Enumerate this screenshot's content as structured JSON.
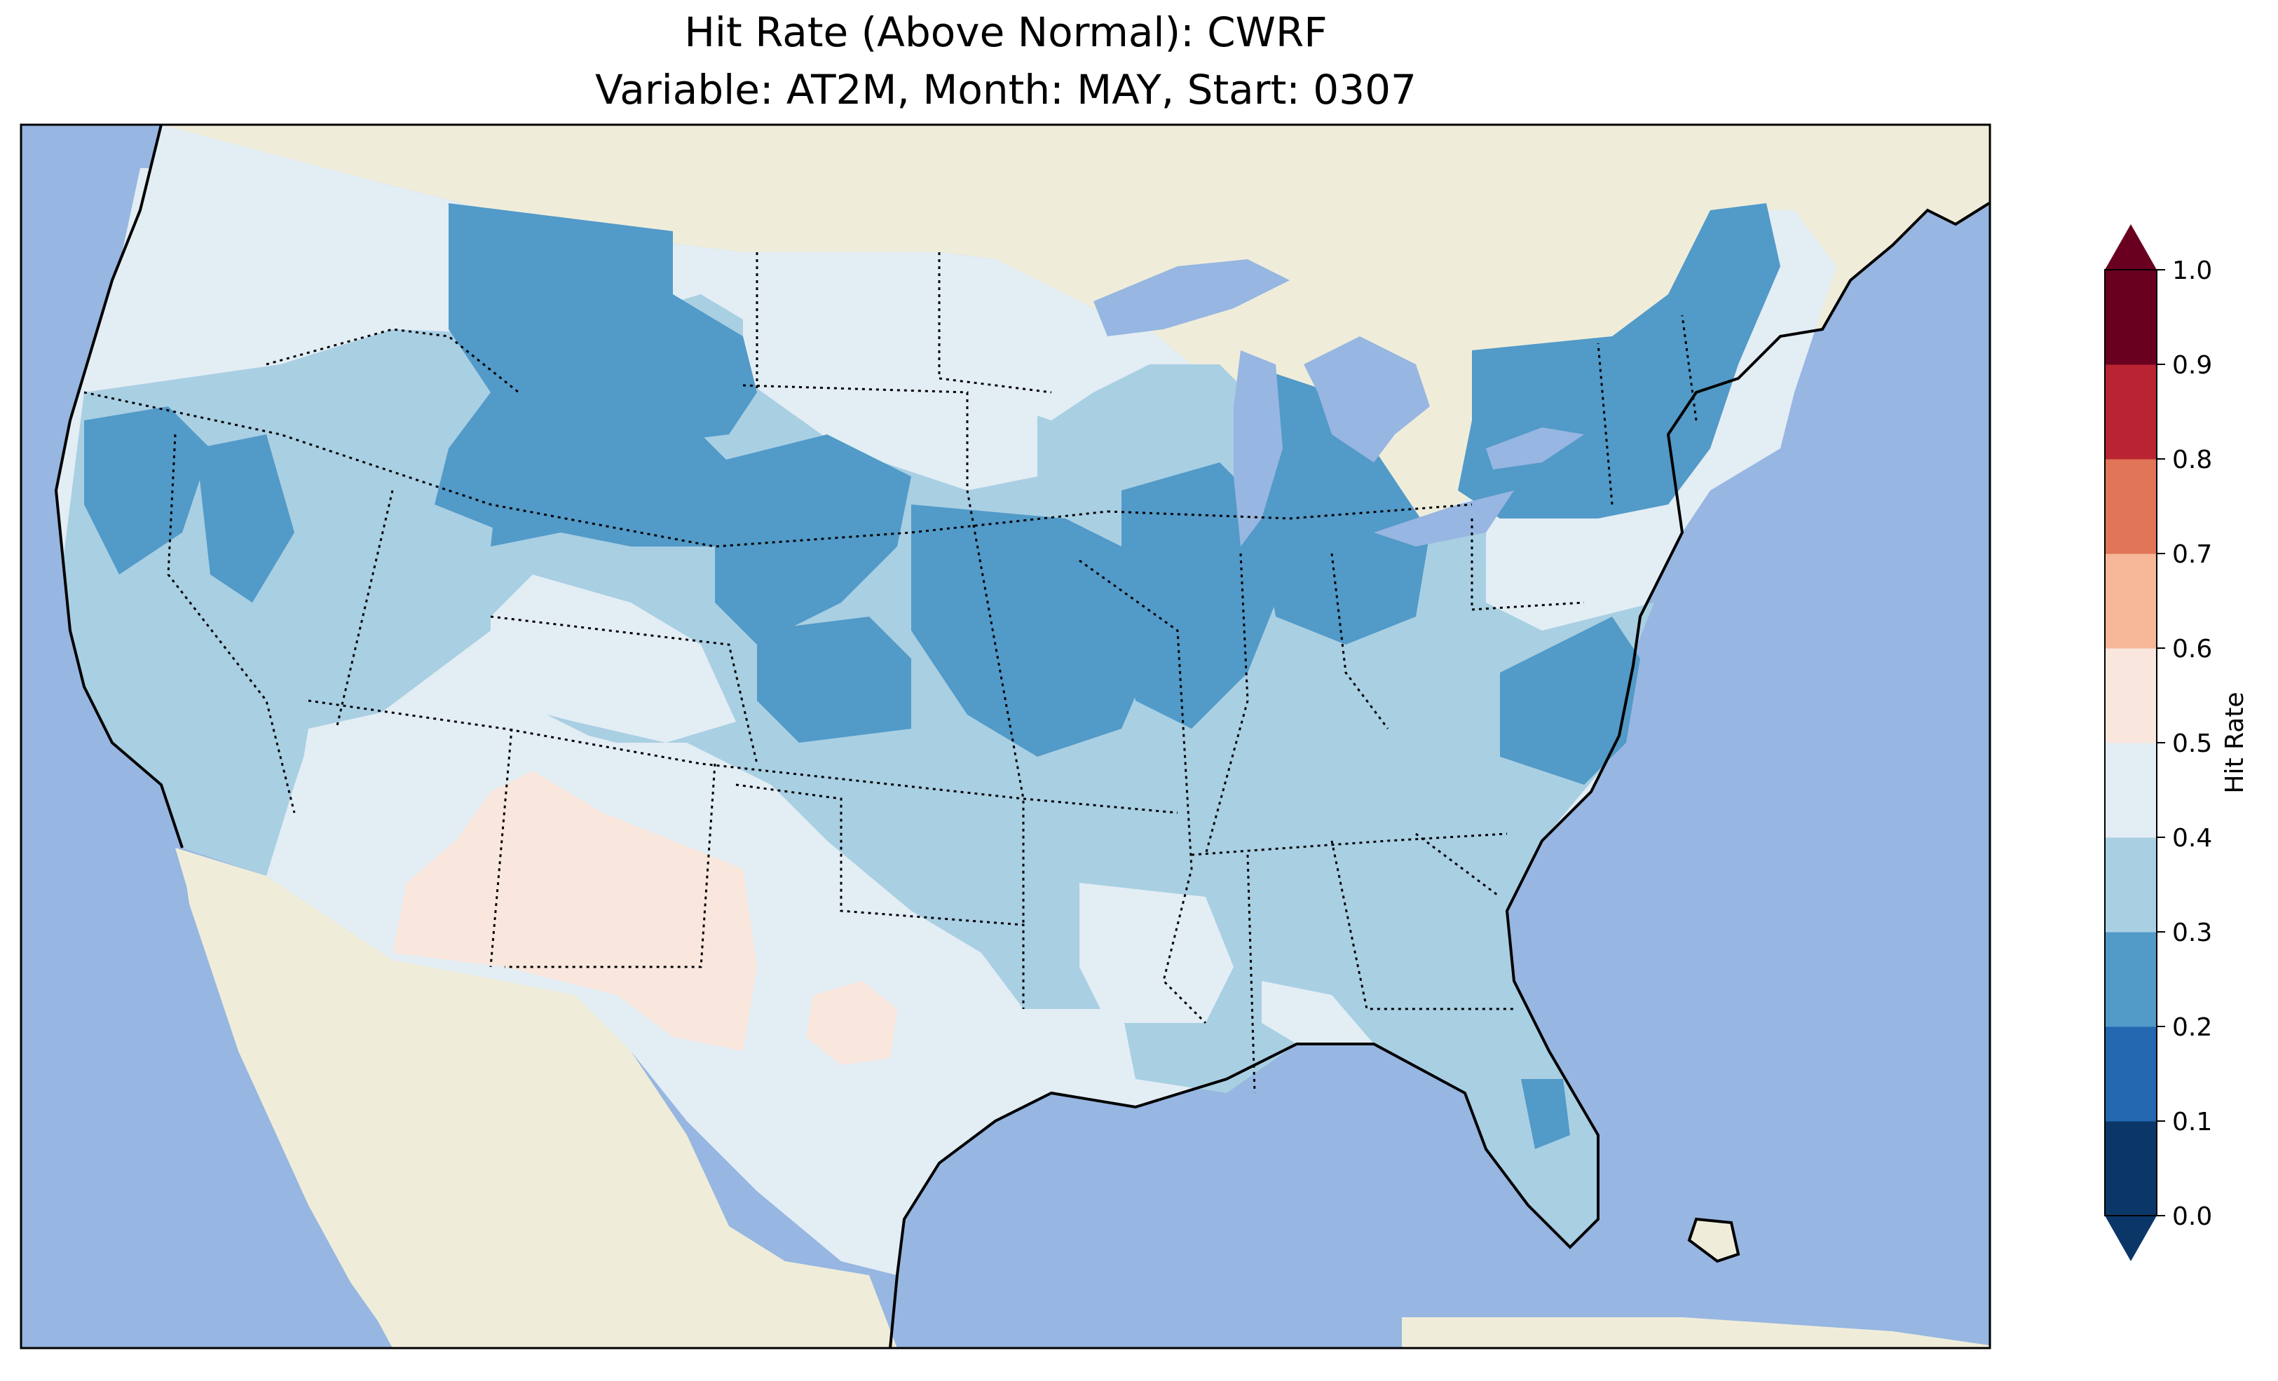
{
  "figure": {
    "title_line1": "Hit Rate (Above Normal): CWRF",
    "title_line2": "Variable: AT2M, Month: MAY, Start: 0307"
  },
  "map": {
    "region": "Contiguous United States",
    "ocean_color": "#97b6e1",
    "land_color": "#efedda",
    "coastline_color": "#000000",
    "border_style": "dotted",
    "dominant_pattern": [
      {
        "region": "Southwest / Arizona / New Mexico / West Texas",
        "bin": "0.5-0.6"
      },
      {
        "region": "Texas, Oklahoma, Nevada, Utah, Washington, Gulf coast",
        "bin": "0.4-0.5"
      },
      {
        "region": "California, Great Plains, Southeast, Florida",
        "bin": "0.3-0.4"
      },
      {
        "region": "Montana, Wyoming, Idaho, Iowa, Missouri, Illinois, Michigan, Ohio, Indiana, New York, New England, Virginia",
        "bin": "0.2-0.3"
      }
    ]
  },
  "colorbar": {
    "label": "Hit Rate",
    "extend": "both",
    "ticks": [
      "0.0",
      "0.1",
      "0.2",
      "0.3",
      "0.4",
      "0.5",
      "0.6",
      "0.7",
      "0.8",
      "0.9",
      "1.0"
    ],
    "colors": [
      "#053061",
      "#2166ac",
      "#4393c3",
      "#92c5de",
      "#d1e5f0",
      "#f7f7f7",
      "#fddbc7",
      "#f4a582",
      "#d6604d",
      "#b2182b",
      "#67001f"
    ],
    "bin_colors_shown": [
      "#0b3768",
      "#2368b0",
      "#529ac8",
      "#a9cfe3",
      "#e3edf4",
      "#f9e7de",
      "#f7b799",
      "#e07558",
      "#ba2432",
      "#6a0020"
    ]
  }
}
